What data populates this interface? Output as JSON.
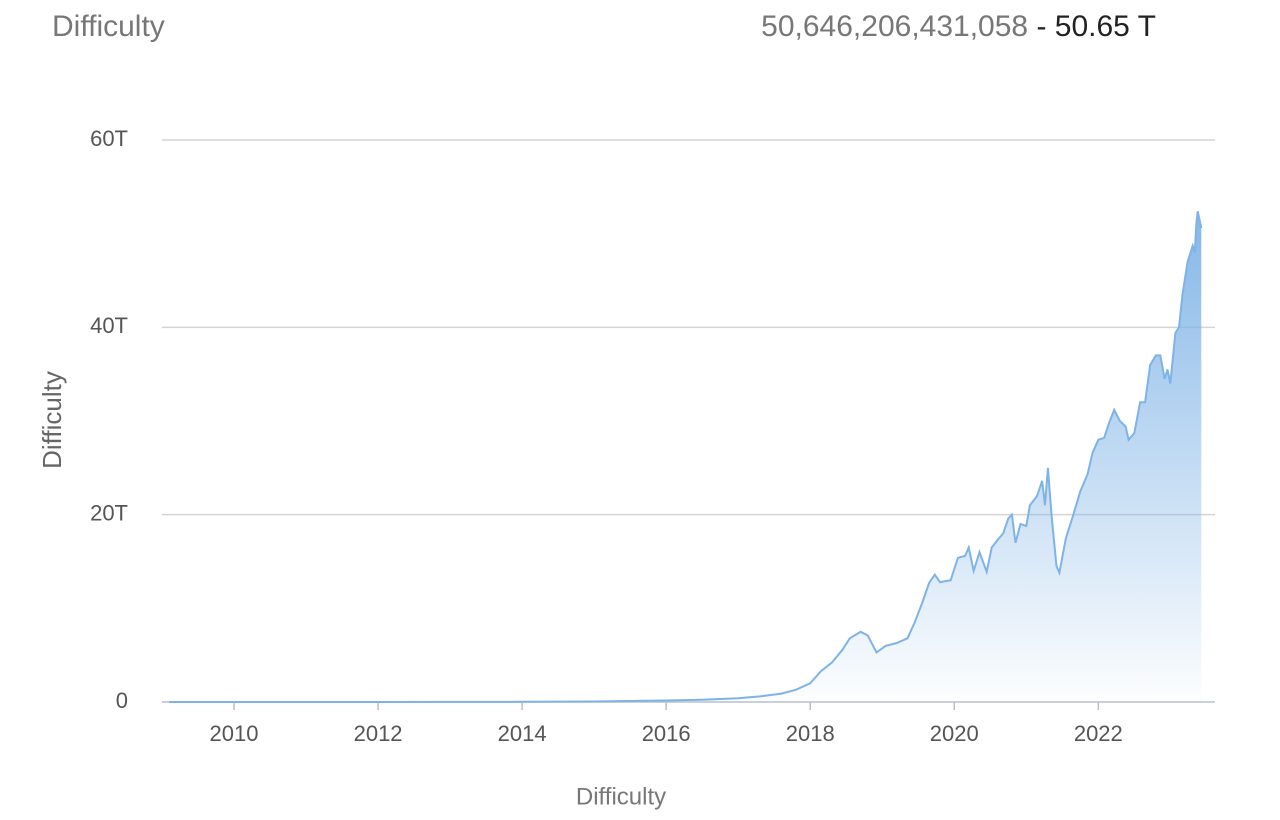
{
  "header": {
    "title": "Difficulty",
    "value": "50,646,206,431,058",
    "separator": "-",
    "short_value": "50.65 T"
  },
  "chart_data": {
    "type": "area",
    "y_label": "Difficulty",
    "x_label": "Difficulty",
    "color": "#7fb3e6",
    "x": [
      2009.1,
      2010,
      2011,
      2012,
      2013,
      2014,
      2015,
      2016,
      2016.5,
      2017,
      2017.3,
      2017.6,
      2017.8,
      2018,
      2018.15,
      2018.3,
      2018.45,
      2018.55,
      2018.7,
      2018.8,
      2018.92,
      2019.05,
      2019.2,
      2019.35,
      2019.45,
      2019.55,
      2019.65,
      2019.73,
      2019.8,
      2019.95,
      2020.05,
      2020.15,
      2020.2,
      2020.27,
      2020.35,
      2020.45,
      2020.52,
      2020.6,
      2020.68,
      2020.75,
      2020.8,
      2020.85,
      2020.92,
      2021,
      2021.05,
      2021.15,
      2021.22,
      2021.26,
      2021.3,
      2021.35,
      2021.42,
      2021.46,
      2021.55,
      2021.65,
      2021.75,
      2021.85,
      2021.92,
      2022,
      2022.08,
      2022.15,
      2022.22,
      2022.3,
      2022.38,
      2022.42,
      2022.5,
      2022.58,
      2022.65,
      2022.72,
      2022.8,
      2022.86,
      2022.92,
      2022.96,
      2023,
      2023.07,
      2023.12,
      2023.17,
      2023.24,
      2023.31,
      2023.34,
      2023.36,
      2023.38,
      2023.43
    ],
    "values": [
      0,
      0,
      0,
      0,
      0.01,
      0.02,
      0.05,
      0.16,
      0.25,
      0.4,
      0.6,
      0.9,
      1.3,
      2,
      3.3,
      4.2,
      5.6,
      6.8,
      7.5,
      7.1,
      5.3,
      6,
      6.3,
      6.8,
      8.5,
      10.5,
      12.7,
      13.6,
      12.8,
      13,
      15.4,
      15.6,
      16.5,
      14,
      16,
      13.9,
      16.5,
      17.3,
      18,
      19.6,
      20,
      17,
      19,
      18.8,
      21,
      22,
      23.6,
      21,
      25,
      20,
      14.5,
      13.8,
      17.5,
      19.9,
      22.5,
      24.3,
      26.6,
      28,
      28.2,
      29.8,
      31.2,
      30,
      29.4,
      28,
      28.7,
      32,
      32,
      36,
      37,
      37,
      34.5,
      35.5,
      34,
      39.4,
      40,
      43.6,
      47,
      48.7,
      48,
      51,
      52.4,
      50.6
    ],
    "xlim": [
      2009,
      2023.62
    ],
    "xticks": [
      2010,
      2012,
      2014,
      2016,
      2018,
      2020,
      2022
    ],
    "ylim": [
      0,
      60
    ],
    "yticks": [
      0,
      {
        "value": 20,
        "label": "20T"
      },
      {
        "value": 40,
        "label": "40T"
      },
      {
        "value": 60,
        "label": "60T"
      }
    ],
    "grid": true
  }
}
